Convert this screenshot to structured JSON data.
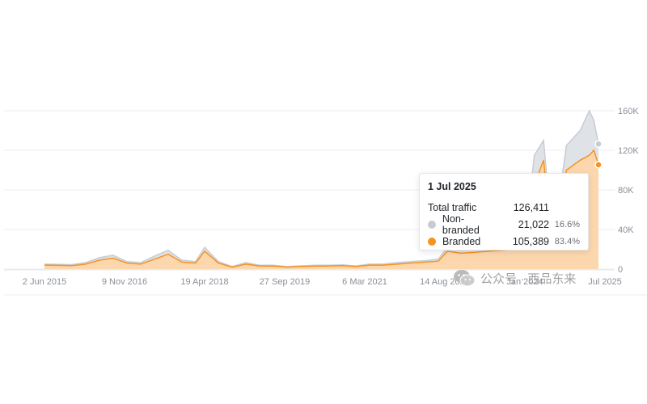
{
  "chart_data": {
    "type": "area",
    "stacked": true,
    "x_tick_labels": [
      "2 Jun 2015",
      "9 Nov 2016",
      "19 Apr 2018",
      "27 Sep 2019",
      "6 Mar 2021",
      "14 Aug 2022",
      "Jan 2024",
      "Jul 2025"
    ],
    "y_tick_labels": [
      "0",
      "40K",
      "80K",
      "120K",
      "160K"
    ],
    "ylim": [
      0,
      160000
    ],
    "x_range": [
      "2015-06",
      "2025-07"
    ],
    "grid": true,
    "legend": "none",
    "series": [
      {
        "name": "Branded",
        "color": "#f7921e",
        "fill": "#fcd7ae",
        "x": [
          "2015-06",
          "2015-12",
          "2016-03",
          "2016-06",
          "2016-09",
          "2016-12",
          "2017-03",
          "2017-06",
          "2017-09",
          "2017-12",
          "2018-03",
          "2018-05",
          "2018-08",
          "2018-11",
          "2019-02",
          "2019-05",
          "2019-08",
          "2019-11",
          "2020-02",
          "2020-05",
          "2020-08",
          "2020-11",
          "2021-02",
          "2021-05",
          "2021-08",
          "2021-11",
          "2022-02",
          "2022-05",
          "2022-08",
          "2022-10",
          "2023-01",
          "2023-04",
          "2023-07",
          "2023-10",
          "2024-01",
          "2024-03",
          "2024-05",
          "2024-07",
          "2024-09",
          "2024-12",
          "2025-03",
          "2025-05",
          "2025-06",
          "2025-07"
        ],
        "values": [
          4000,
          3500,
          5000,
          9000,
          11000,
          6000,
          5000,
          10000,
          15000,
          7000,
          6000,
          18000,
          6000,
          2000,
          5000,
          3000,
          3000,
          2000,
          2500,
          3000,
          3000,
          3500,
          2500,
          4000,
          4000,
          5000,
          6000,
          7000,
          8000,
          18000,
          16000,
          17000,
          18000,
          19000,
          20000,
          25000,
          85000,
          110000,
          20000,
          100000,
          110000,
          115000,
          120000,
          105389
        ]
      },
      {
        "name": "Non-branded",
        "color": "#c7ccd3",
        "x": [
          "2015-06",
          "2015-12",
          "2016-03",
          "2016-06",
          "2016-09",
          "2016-12",
          "2017-03",
          "2017-06",
          "2017-09",
          "2017-12",
          "2018-03",
          "2018-05",
          "2018-08",
          "2018-11",
          "2019-02",
          "2019-05",
          "2019-08",
          "2019-11",
          "2020-02",
          "2020-05",
          "2020-08",
          "2020-11",
          "2021-02",
          "2021-05",
          "2021-08",
          "2021-11",
          "2022-02",
          "2022-05",
          "2022-08",
          "2022-10",
          "2023-01",
          "2023-04",
          "2023-07",
          "2023-10",
          "2024-01",
          "2024-03",
          "2024-05",
          "2024-07",
          "2024-09",
          "2024-12",
          "2025-03",
          "2025-05",
          "2025-06",
          "2025-07"
        ],
        "values": [
          1000,
          1000,
          1500,
          2500,
          3000,
          1500,
          1500,
          3000,
          4000,
          2000,
          1500,
          4000,
          1500,
          500,
          1500,
          800,
          800,
          500,
          800,
          800,
          800,
          800,
          700,
          1000,
          1000,
          1500,
          1500,
          1500,
          2000,
          4000,
          3500,
          4000,
          4000,
          4000,
          5000,
          6000,
          30000,
          20000,
          5000,
          25000,
          30000,
          45000,
          30000,
          21022
        ]
      }
    ],
    "tooltip": {
      "date": "1 Jul 2025",
      "total_label": "Total traffic",
      "total_value": "126,411",
      "rows": [
        {
          "label": "Non-branded",
          "value": "21,022",
          "pct": "16.6%",
          "color": "#c7ccd3"
        },
        {
          "label": "Branded",
          "value": "105,389",
          "pct": "83.4%",
          "color": "#f7921e"
        }
      ]
    }
  },
  "watermark": {
    "text": "公众号 · 西品东来"
  }
}
